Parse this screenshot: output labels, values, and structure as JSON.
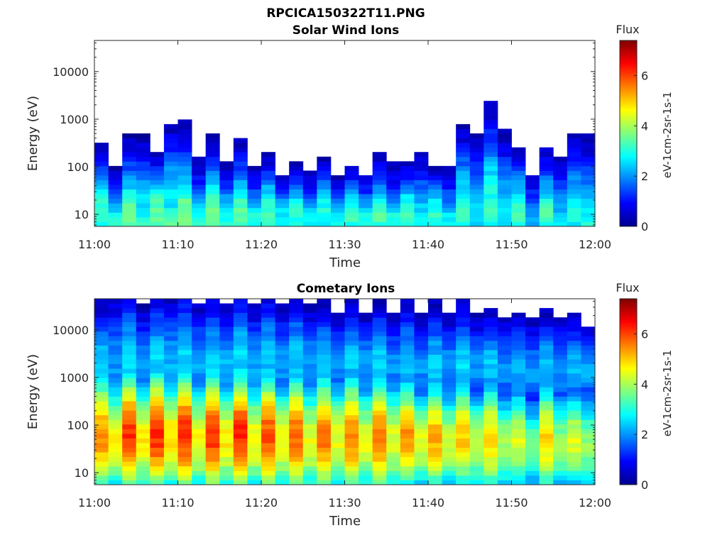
{
  "figure_title": "RPCICA150322T11.PNG",
  "chart_data": [
    {
      "type": "heatmap",
      "title": "Solar Wind Ions",
      "xlabel": "Time",
      "ylabel": "Energy (eV)",
      "y_scale": "log",
      "xticks": [
        "11:00",
        "11:10",
        "11:20",
        "11:30",
        "11:40",
        "11:50",
        "12:00"
      ],
      "yticks": [
        "10",
        "100",
        "1000",
        "10000"
      ],
      "colorbar": {
        "label": "Flux",
        "units": "eV-1cm-2sr-1s-1",
        "ticks": [
          "0",
          "2",
          "4",
          "6"
        ],
        "range": [
          0,
          7.4
        ]
      },
      "time_start": "11:00",
      "time_end": "12:00",
      "bins": 36,
      "cells": [
        [
          [
            16,
            2.5,
            0.4
          ],
          [
            7.6,
            2.2,
            0.6
          ],
          [
            20,
            2.4,
            0.7
          ],
          [
            11,
            2.7,
            0.8
          ],
          [
            7.6,
            2.5,
            0.6
          ],
          [
            20,
            2.7,
            0.8
          ],
          [
            13,
            3.0,
            0.9
          ],
          [
            7.6,
            2.2,
            0.7
          ],
          [
            19,
            2.5,
            0.7
          ],
          [
            9.2,
            2.3,
            0.6
          ],
          [
            16,
            2.6,
            0.7
          ],
          [
            7.6,
            2.4,
            0.6
          ],
          [
            18,
            2.4,
            0.5
          ],
          [
            8.1,
            2.0,
            0.4
          ],
          [
            14,
            2.4,
            0.5
          ],
          [
            8.1,
            2.3,
            0.5
          ],
          [
            16,
            1.9,
            0.2
          ],
          [
            9.4,
            2.1,
            0.2
          ],
          [
            15,
            2.2,
            0.4
          ],
          [
            9.4,
            2.1,
            0.4
          ],
          [
            14,
            2.4,
            0.6
          ],
          [
            8.6,
            2.1,
            0.6
          ],
          [
            15,
            2.4,
            0.5
          ],
          [
            8.6,
            2.5,
            0.7
          ],
          [
            12,
            2.4,
            0.5
          ],
          [
            7.5,
            2.2,
            0.6
          ],
          [
            18,
            2.8,
            0.8
          ],
          [
            7.5,
            2.6,
            0.9
          ],
          [
            22,
            2.9,
            1.0
          ],
          [
            10,
            2.6,
            0.9
          ],
          [
            18,
            2.5,
            0.6
          ],
          [
            8.7,
            1.9,
            0.5
          ],
          [
            19,
            2.3,
            0.6
          ],
          [
            7.5,
            2.3,
            0.7
          ],
          [
            13,
            2.6,
            0.8
          ],
          [
            6.8,
            2.8,
            0.9
          ]
        ],
        [
          [
            11,
            3.2,
            0.7
          ],
          [
            6.2,
            3.0,
            0.5
          ],
          [
            11,
            3.6,
            0.6
          ],
          [
            6.2,
            3.1,
            0.5
          ],
          [
            11,
            3.5,
            0.6
          ],
          [
            6.5,
            3.3,
            0.5
          ],
          [
            11,
            3.7,
            0.6
          ],
          [
            6.5,
            3.0,
            0.5
          ],
          [
            12,
            3.5,
            0.7
          ],
          [
            6.8,
            3.0,
            0.6
          ],
          [
            11,
            3.4,
            0.6
          ],
          [
            6.8,
            3.0,
            0.5
          ],
          [
            11,
            3.2,
            0.6
          ],
          [
            6.8,
            2.9,
            0.5
          ],
          [
            10,
            3.1,
            0.5
          ],
          [
            6.5,
            2.8,
            0.5
          ],
          [
            10,
            3.0,
            0.6
          ],
          [
            6.8,
            2.7,
            0.5
          ],
          [
            10,
            3.2,
            0.5
          ],
          [
            6.8,
            2.9,
            0.5
          ],
          [
            10,
            3.4,
            0.5
          ],
          [
            6.8,
            3.0,
            0.5
          ],
          [
            11,
            3.2,
            0.5
          ],
          [
            6.8,
            2.9,
            0.5
          ],
          [
            10,
            3.1,
            0.5
          ],
          [
            6.8,
            2.8,
            0.4
          ],
          [
            11,
            3.2,
            0.5
          ],
          [
            6.8,
            2.6,
            0.4
          ],
          [
            11,
            3.3,
            0.5
          ],
          [
            6.8,
            2.6,
            0.4
          ],
          [
            11,
            3.2,
            0.5
          ],
          [
            6.2,
            2.3,
            0.4
          ],
          [
            11,
            3.3,
            0.5
          ],
          [
            6.8,
            2.6,
            0.4
          ],
          [
            11,
            3.1,
            0.5
          ],
          [
            6.5,
            2.9,
            0.5
          ]
        ]
      ]
    },
    {
      "type": "heatmap",
      "title": "Cometary Ions",
      "xlabel": "Time",
      "ylabel": "Energy (eV)",
      "y_scale": "log",
      "xticks": [
        "11:00",
        "11:10",
        "11:20",
        "11:30",
        "11:40",
        "11:50",
        "12:00"
      ],
      "yticks": [
        "10",
        "100",
        "1000",
        "10000"
      ],
      "colorbar": {
        "label": "Flux",
        "units": "eV-1cm-2sr-1s-1",
        "ticks": [
          "0",
          "2",
          "4",
          "6"
        ],
        "range": [
          0,
          7.4
        ]
      },
      "time_start": "11:00",
      "time_end": "12:00",
      "bins": 36,
      "cells": [
        [
          [
            2000,
            2.4,
            0.7
          ],
          [
            1900,
            2.0,
            0.8
          ],
          [
            2700,
            2.5,
            0.8
          ],
          [
            1800,
            2.1,
            0.7
          ],
          [
            2200,
            2.5,
            0.8
          ],
          [
            2000,
            2.2,
            0.8
          ],
          [
            2600,
            2.5,
            0.8
          ],
          [
            1900,
            2.1,
            0.7
          ],
          [
            2300,
            2.4,
            0.8
          ],
          [
            1800,
            2.2,
            0.7
          ],
          [
            2600,
            2.5,
            0.8
          ],
          [
            1900,
            2.1,
            0.7
          ],
          [
            2400,
            2.4,
            0.8
          ],
          [
            1800,
            2.1,
            0.7
          ],
          [
            2300,
            2.4,
            0.8
          ],
          [
            1700,
            2.1,
            0.7
          ],
          [
            2200,
            2.3,
            0.7
          ],
          [
            1800,
            2.0,
            0.6
          ],
          [
            2300,
            2.4,
            0.7
          ],
          [
            1800,
            2.1,
            0.6
          ],
          [
            2200,
            2.4,
            0.7
          ],
          [
            1700,
            2.0,
            0.6
          ],
          [
            2100,
            2.4,
            0.7
          ],
          [
            1600,
            2.0,
            0.6
          ],
          [
            1900,
            2.4,
            0.7
          ],
          [
            1800,
            2.0,
            0.6
          ],
          [
            2000,
            2.5,
            0.7
          ],
          [
            1700,
            2.0,
            0.6
          ],
          [
            1900,
            2.4,
            0.6
          ],
          [
            1500,
            2.0,
            0.6
          ],
          [
            1700,
            2.3,
            0.6
          ],
          [
            1400,
            2.0,
            0.6
          ],
          [
            1800,
            2.4,
            0.6
          ],
          [
            1500,
            2.0,
            0.6
          ],
          [
            1600,
            2.3,
            0.6
          ],
          [
            1400,
            2.1,
            0.5
          ]
        ],
        [
          [
            60,
            5.4,
            1.0
          ],
          [
            48,
            4.6,
            0.9
          ],
          [
            65,
            6.1,
            1.0
          ],
          [
            48,
            4.7,
            0.9
          ],
          [
            65,
            6.2,
            1.0
          ],
          [
            50,
            4.9,
            0.9
          ],
          [
            65,
            6.2,
            1.0
          ],
          [
            48,
            4.6,
            0.9
          ],
          [
            62,
            6.1,
            1.0
          ],
          [
            48,
            4.7,
            0.9
          ],
          [
            65,
            6.2,
            1.0
          ],
          [
            48,
            4.6,
            0.9
          ],
          [
            60,
            5.9,
            1.0
          ],
          [
            46,
            4.5,
            0.9
          ],
          [
            58,
            5.7,
            1.0
          ],
          [
            45,
            4.5,
            0.9
          ],
          [
            58,
            5.6,
            1.0
          ],
          [
            45,
            4.5,
            0.9
          ],
          [
            56,
            5.5,
            1.0
          ],
          [
            45,
            4.4,
            0.9
          ],
          [
            56,
            5.5,
            1.0
          ],
          [
            45,
            4.4,
            0.9
          ],
          [
            55,
            5.4,
            0.9
          ],
          [
            43,
            4.4,
            0.8
          ],
          [
            52,
            5.2,
            0.9
          ],
          [
            43,
            4.3,
            0.8
          ],
          [
            55,
            5.0,
            0.9
          ],
          [
            40,
            4.2,
            0.8
          ],
          [
            50,
            4.9,
            0.9
          ],
          [
            38,
            4.0,
            0.8
          ],
          [
            48,
            4.4,
            0.8
          ],
          [
            36,
            3.6,
            0.7
          ],
          [
            50,
            4.9,
            0.9
          ],
          [
            38,
            3.9,
            0.8
          ],
          [
            45,
            4.4,
            0.8
          ],
          [
            36,
            3.8,
            0.8
          ]
        ]
      ]
    }
  ]
}
